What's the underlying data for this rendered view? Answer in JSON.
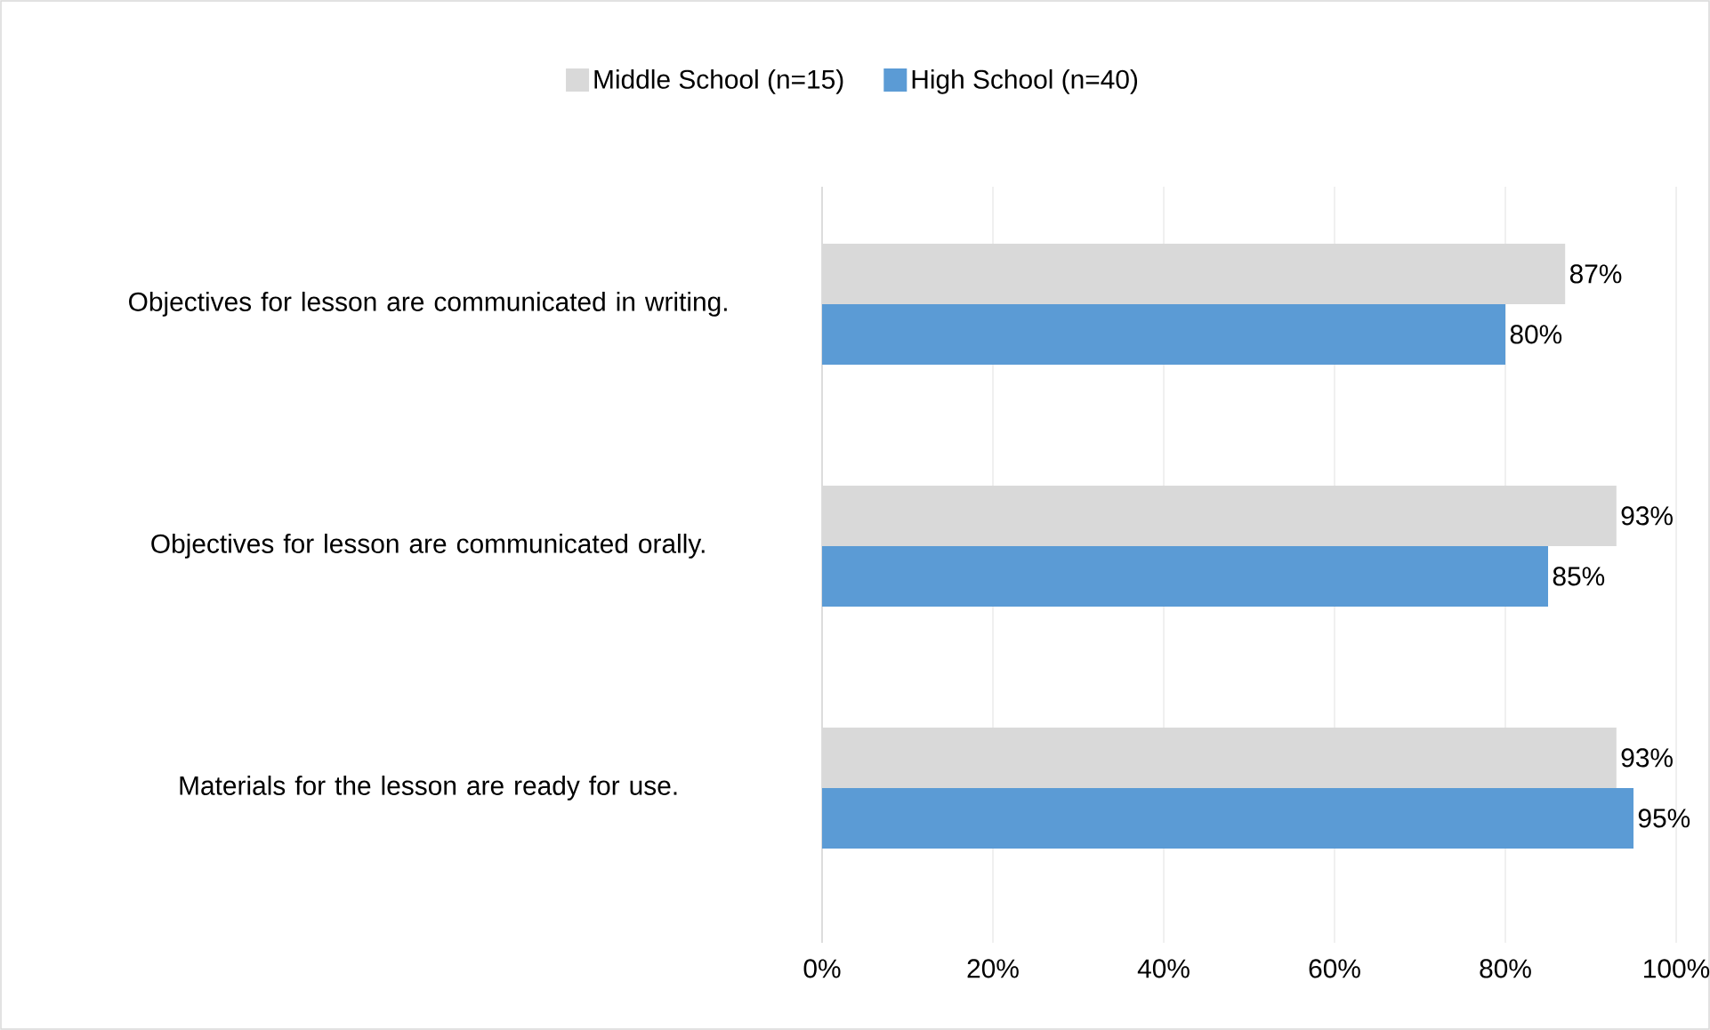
{
  "chart_data": {
    "type": "bar",
    "orientation": "horizontal",
    "categories": [
      "Objectives for lesson are communicated in writing.",
      "Objectives for lesson are communicated orally.",
      "Materials for the lesson are ready for use."
    ],
    "series": [
      {
        "name": "Middle School (n=15)",
        "color": "#d9d9d9",
        "values": [
          87,
          93,
          93
        ],
        "value_labels": [
          "87%",
          "93%",
          "93%"
        ]
      },
      {
        "name": "High School (n=40)",
        "color": "#5b9bd5",
        "values": [
          80,
          85,
          95
        ],
        "value_labels": [
          "80%",
          "85%",
          "95%"
        ]
      }
    ],
    "xlim": [
      0,
      100
    ],
    "xticks": [
      {
        "value": 0,
        "label": "0%"
      },
      {
        "value": 20,
        "label": "20%"
      },
      {
        "value": 40,
        "label": "40%"
      },
      {
        "value": 60,
        "label": "60%"
      },
      {
        "value": 80,
        "label": "80%"
      },
      {
        "value": 100,
        "label": "100%"
      }
    ],
    "grid": "x",
    "legend": "top"
  }
}
